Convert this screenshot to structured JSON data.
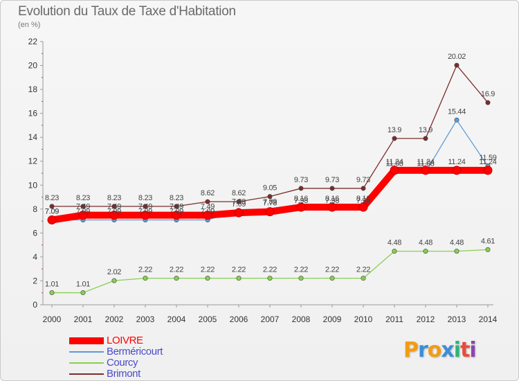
{
  "title": "Evolution du Taux de Taxe d'Habitation",
  "subtitle": "(en %)",
  "logo": {
    "letters": [
      "P",
      "r",
      "o",
      "x",
      "i",
      "t",
      "i"
    ],
    "colors": [
      "#f39c12",
      "#3b8ed8",
      "#f39c12",
      "#3b8ed8",
      "#2bb673",
      "#e74c3c",
      "#8e44ad"
    ]
  },
  "chart_data": {
    "type": "line",
    "x": [
      "2000",
      "2001",
      "2002",
      "2003",
      "2004",
      "2005",
      "2006",
      "2007",
      "2008",
      "2009",
      "2010",
      "2011",
      "2012",
      "2013",
      "2014"
    ],
    "ylim": [
      0,
      22
    ],
    "yticks": [
      "0",
      "2",
      "4",
      "6",
      "8",
      "10",
      "12",
      "14",
      "16",
      "18",
      "20",
      "22"
    ],
    "grid": false,
    "legend_position": "bottom-left",
    "series": [
      {
        "name": "LOIVRE",
        "color": "#ff0000",
        "values": [
          7.09,
          7.49,
          7.49,
          7.49,
          7.49,
          7.49,
          7.69,
          7.78,
          8.16,
          8.16,
          8.16,
          11.24,
          11.24,
          11.24,
          11.24
        ],
        "labels": [
          "7.09",
          "7.49",
          "7.49",
          "7.49",
          "7.49",
          "7.49",
          "7.69",
          "7.78",
          "8.16",
          "8.16",
          "8.16",
          "11.24",
          "11.24",
          "11.24",
          "11.24"
        ]
      },
      {
        "name": "Berméricourt",
        "color": "#5b9bd5",
        "values": [
          7.09,
          7.09,
          7.09,
          7.09,
          7.09,
          7.09,
          7.89,
          7.89,
          7.98,
          7.98,
          7.98,
          11.08,
          11.08,
          15.44,
          11.59
        ],
        "labels": [
          "7.09",
          "7.09",
          "7.09",
          "7.09",
          "7.09",
          "7.09",
          "7.89",
          "7.89",
          "7.98",
          "7.98",
          "7.98",
          "11.08",
          "11.08",
          "15.44",
          "11.59"
        ]
      },
      {
        "name": "Courcy",
        "color": "#88d04f",
        "values": [
          1.01,
          1.01,
          2.02,
          2.22,
          2.22,
          2.22,
          2.22,
          2.22,
          2.22,
          2.22,
          2.22,
          4.48,
          4.48,
          4.48,
          4.61
        ],
        "labels": [
          "1.01",
          "1.01",
          "2.02",
          "2.22",
          "2.22",
          "2.22",
          "2.22",
          "2.22",
          "2.22",
          "2.22",
          "2.22",
          "4.48",
          "4.48",
          "4.48",
          "4.61"
        ]
      },
      {
        "name": "Brimont",
        "color": "#7b2c2c",
        "values": [
          8.23,
          8.23,
          8.23,
          8.23,
          8.23,
          8.62,
          8.62,
          9.05,
          9.73,
          9.73,
          9.73,
          13.9,
          13.9,
          20.02,
          16.9
        ],
        "labels": [
          "8.23",
          "8.23",
          "8.23",
          "8.23",
          "8.23",
          "8.62",
          "8.62",
          "9.05",
          "9.73",
          "9.73",
          "9.73",
          "13.9",
          "13.9",
          "20.02",
          "16.9"
        ]
      }
    ]
  }
}
